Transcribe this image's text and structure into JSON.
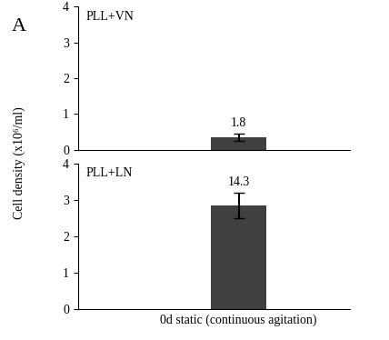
{
  "panel": "A",
  "ylabel": "Cell density (x10⁶/ml)",
  "chart_data": [
    {
      "type": "bar",
      "title": "PLL+VN",
      "categories": [
        null
      ],
      "values": [
        0.35
      ],
      "errors": [
        0.1
      ],
      "annotations": [
        "1.8"
      ],
      "color": "#404040",
      "ylim": [
        0,
        4
      ],
      "yticks": [
        0,
        1,
        2,
        3,
        4
      ]
    },
    {
      "type": "bar",
      "title": "PLL+LN",
      "categories": [
        "0d static (continuous agitation)"
      ],
      "values": [
        2.85
      ],
      "errors": [
        0.35
      ],
      "annotations": [
        "14.3"
      ],
      "color": "#404040",
      "ylim": [
        0,
        4
      ],
      "yticks": [
        0,
        1,
        2,
        3,
        4
      ]
    }
  ]
}
